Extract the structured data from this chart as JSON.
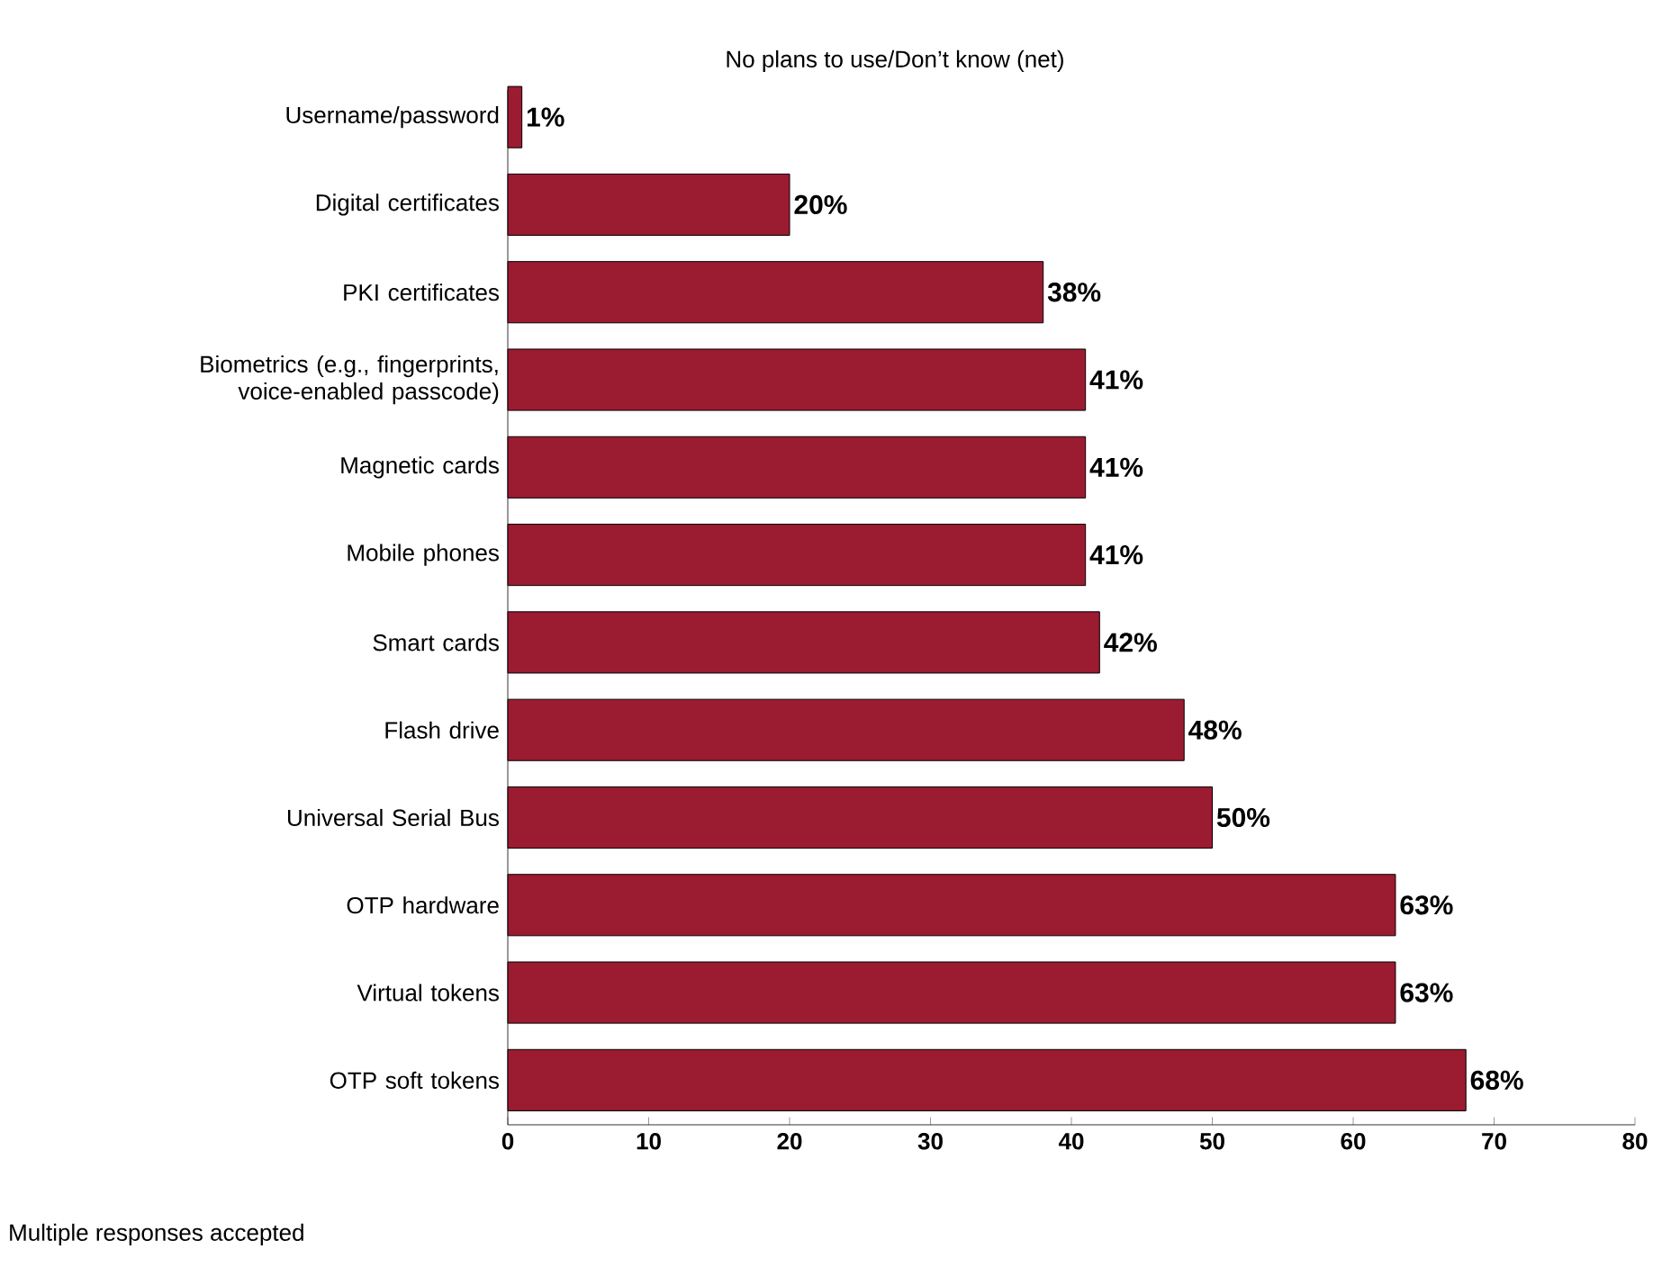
{
  "chart_data": {
    "type": "bar",
    "orientation": "horizontal",
    "title": "No plans to use/Don’t know (net)",
    "categories": [
      "Username/password",
      "Digital certificates",
      "PKI certificates",
      "Biometrics (e.g., fingerprints, voice-enabled passcode)",
      "Magnetic cards",
      "Mobile phones",
      "Smart cards",
      "Flash drive",
      "Universal Serial Bus",
      "OTP hardware",
      "Virtual tokens",
      "OTP soft tokens"
    ],
    "values": [
      1,
      20,
      38,
      41,
      41,
      41,
      42,
      48,
      50,
      63,
      63,
      68
    ],
    "value_labels": [
      "1%",
      "20%",
      "38%",
      "41%",
      "41%",
      "41%",
      "42%",
      "48%",
      "50%",
      "63%",
      "63%",
      "68%"
    ],
    "color": "#9b1b31",
    "xlim": [
      0,
      80
    ],
    "xticks": [
      0,
      10,
      20,
      30,
      40,
      50,
      60,
      70,
      80
    ],
    "annotations": [
      "Multiple responses accepted"
    ]
  }
}
